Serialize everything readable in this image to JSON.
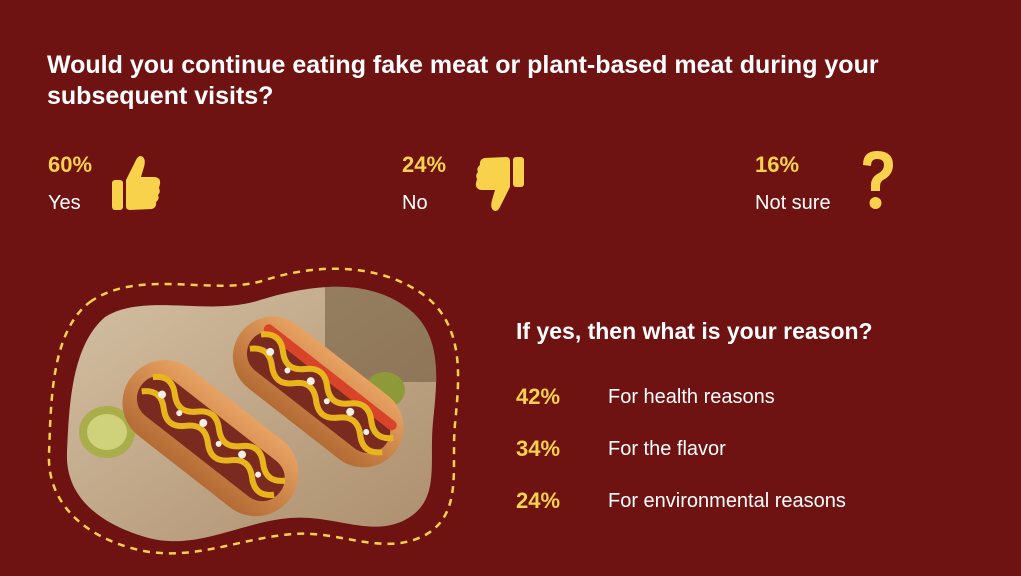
{
  "question": "Would you continue eating fake meat or plant-based meat during your subsequent visits?",
  "stats": [
    {
      "percent": "60%",
      "label": "Yes",
      "icon": "thumbs-up-icon"
    },
    {
      "percent": "24%",
      "label": "No",
      "icon": "thumbs-down-icon"
    },
    {
      "percent": "16%",
      "label": "Not sure",
      "icon": "question-mark-icon"
    }
  ],
  "reasons": {
    "title": "If yes, then what is your reason?",
    "items": [
      {
        "percent": "42%",
        "label": "For health reasons"
      },
      {
        "percent": "34%",
        "label": "For the flavor"
      },
      {
        "percent": "24%",
        "label": "For environmental reasons"
      }
    ]
  },
  "colors": {
    "background": "#6e1212",
    "accent": "#f7d24a",
    "text": "#ffffff"
  },
  "image": {
    "subject": "hot-dogs-photo"
  }
}
